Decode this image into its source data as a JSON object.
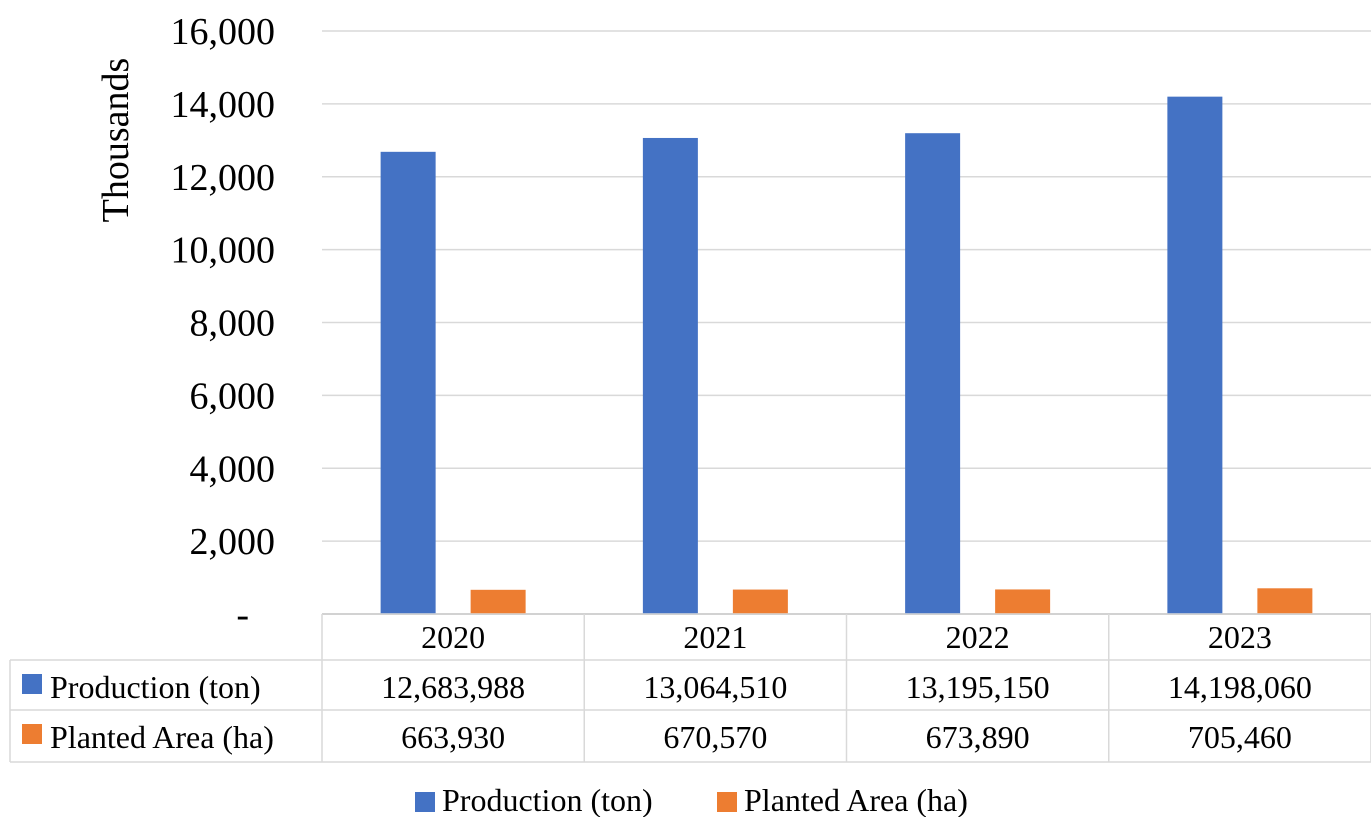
{
  "chart_data": {
    "type": "bar",
    "ylabel": "Thousands",
    "ylim": [
      0,
      16000
    ],
    "y_ticks": [
      "-",
      "2,000",
      "4,000",
      "6,000",
      "8,000",
      "10,000",
      "12,000",
      "14,000",
      "16,000"
    ],
    "y_tick_values": [
      0,
      2000,
      4000,
      6000,
      8000,
      10000,
      12000,
      14000,
      16000
    ],
    "grid": true,
    "legend_position": "bottom",
    "categories": [
      "2020",
      "2021",
      "2022",
      "2023"
    ],
    "series": [
      {
        "name": "Production (ton)",
        "color": "#4472C4",
        "values": [
          12683988,
          13064510,
          13195150,
          14198060
        ],
        "labels": [
          "12,683,988",
          "13,064,510",
          "13,195,150",
          "14,198,060"
        ]
      },
      {
        "name": "Planted Area (ha)",
        "color": "#ED7D31",
        "values": [
          663930,
          670570,
          673890,
          705460
        ],
        "labels": [
          "663,930",
          "670,570",
          "673,890",
          "705,460"
        ]
      }
    ],
    "value_scale": 1000,
    "data_table": true
  }
}
